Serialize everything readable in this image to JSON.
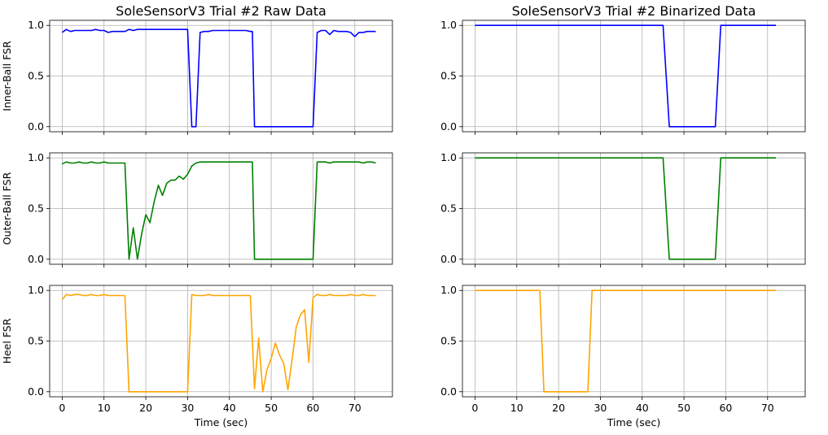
{
  "chart_data": [
    {
      "type": "line",
      "title": "SoleSensorV3 Trial #2 Raw Data",
      "ylabel": "Inner-Ball FSR",
      "xlabel": "",
      "xlim": [
        -3,
        79
      ],
      "ylim": [
        -0.05,
        1.05
      ],
      "xticks": [],
      "yticks": [
        "0.0",
        "0.5",
        "1.0"
      ],
      "grid": true,
      "series": [
        {
          "color": "#0000ff",
          "x": [
            0,
            1,
            2,
            3,
            4,
            5,
            6,
            7,
            8,
            9,
            10,
            11,
            12,
            13,
            14,
            15,
            16,
            17,
            18,
            19,
            20,
            21,
            22,
            23,
            24,
            25,
            26,
            27,
            28,
            29,
            30,
            31,
            32,
            33,
            34,
            35,
            36,
            37,
            38,
            39,
            40,
            41,
            42,
            43,
            44,
            45,
            45.5,
            46,
            60,
            61,
            62,
            63,
            64,
            65,
            66,
            67,
            68,
            69,
            70,
            71,
            72,
            73,
            74,
            75
          ],
          "y": [
            0.93,
            0.96,
            0.94,
            0.95,
            0.95,
            0.95,
            0.95,
            0.95,
            0.96,
            0.95,
            0.95,
            0.93,
            0.94,
            0.94,
            0.94,
            0.94,
            0.96,
            0.95,
            0.96,
            0.96,
            0.96,
            0.96,
            0.96,
            0.96,
            0.96,
            0.96,
            0.96,
            0.96,
            0.96,
            0.96,
            0.96,
            0.0,
            0.0,
            0.93,
            0.94,
            0.94,
            0.95,
            0.95,
            0.95,
            0.95,
            0.95,
            0.95,
            0.95,
            0.95,
            0.95,
            0.94,
            0.94,
            0.0,
            0.0,
            0.93,
            0.95,
            0.95,
            0.91,
            0.95,
            0.94,
            0.94,
            0.94,
            0.93,
            0.89,
            0.93,
            0.93,
            0.94,
            0.94,
            0.94
          ]
        }
      ]
    },
    {
      "type": "line",
      "title": "SoleSensorV3 Trial #2 Binarized Data",
      "ylabel": "",
      "xlabel": "",
      "xlim": [
        -3,
        79
      ],
      "ylim": [
        -0.05,
        1.05
      ],
      "xticks": [],
      "yticks": [
        "0.0",
        "0.5",
        "1.0"
      ],
      "grid": true,
      "series": [
        {
          "color": "#0000ff",
          "x": [
            0,
            45,
            46.5,
            57.5,
            58.8,
            72
          ],
          "y": [
            1,
            1,
            0,
            0,
            1,
            1
          ]
        }
      ]
    },
    {
      "type": "line",
      "title": "",
      "ylabel": "Outer-Ball FSR",
      "xlabel": "",
      "xlim": [
        -3,
        79
      ],
      "ylim": [
        -0.05,
        1.05
      ],
      "xticks": [],
      "yticks": [
        "0.0",
        "0.5",
        "1.0"
      ],
      "grid": true,
      "series": [
        {
          "color": "#008000",
          "x": [
            0,
            1,
            2,
            3,
            4,
            5,
            6,
            7,
            8,
            9,
            10,
            11,
            12,
            13,
            14,
            15,
            16,
            17,
            18,
            19,
            20,
            21,
            22,
            23,
            24,
            25,
            26,
            27,
            28,
            29,
            30,
            31,
            32,
            33,
            34,
            35,
            36,
            37,
            38,
            39,
            40,
            41,
            42,
            43,
            44,
            45,
            45.5,
            46,
            60,
            61,
            62,
            63,
            64,
            65,
            66,
            67,
            68,
            69,
            70,
            71,
            72,
            73,
            74,
            75
          ],
          "y": [
            0.94,
            0.96,
            0.95,
            0.95,
            0.96,
            0.95,
            0.95,
            0.96,
            0.95,
            0.95,
            0.96,
            0.95,
            0.95,
            0.95,
            0.95,
            0.95,
            0.0,
            0.31,
            0.0,
            0.25,
            0.44,
            0.36,
            0.57,
            0.73,
            0.63,
            0.75,
            0.78,
            0.78,
            0.82,
            0.79,
            0.84,
            0.92,
            0.95,
            0.96,
            0.96,
            0.96,
            0.96,
            0.96,
            0.96,
            0.96,
            0.96,
            0.96,
            0.96,
            0.96,
            0.96,
            0.96,
            0.96,
            0.0,
            0.0,
            0.96,
            0.96,
            0.96,
            0.95,
            0.96,
            0.96,
            0.96,
            0.96,
            0.96,
            0.96,
            0.96,
            0.95,
            0.96,
            0.96,
            0.95
          ]
        }
      ]
    },
    {
      "type": "line",
      "title": "",
      "ylabel": "",
      "xlabel": "",
      "xlim": [
        -3,
        79
      ],
      "ylim": [
        -0.05,
        1.05
      ],
      "xticks": [],
      "yticks": [
        "0.0",
        "0.5",
        "1.0"
      ],
      "grid": true,
      "series": [
        {
          "color": "#008000",
          "x": [
            0,
            45,
            46.5,
            57.5,
            58.8,
            72
          ],
          "y": [
            1,
            1,
            0,
            0,
            1,
            1
          ]
        }
      ]
    },
    {
      "type": "line",
      "title": "",
      "ylabel": "Heel FSR",
      "xlabel": "Time (sec)",
      "xlim": [
        -3,
        79
      ],
      "ylim": [
        -0.05,
        1.05
      ],
      "xticks": [
        "0",
        "10",
        "20",
        "30",
        "40",
        "50",
        "60",
        "70"
      ],
      "yticks": [
        "0.0",
        "0.5",
        "1.0"
      ],
      "grid": true,
      "series": [
        {
          "color": "#ffa500",
          "x": [
            0,
            1,
            2,
            3,
            4,
            5,
            6,
            7,
            8,
            9,
            10,
            11,
            12,
            13,
            14,
            15,
            16,
            17,
            18,
            19,
            20,
            21,
            22,
            23,
            24,
            25,
            26,
            27,
            28,
            29,
            30,
            31,
            32,
            33,
            34,
            35,
            36,
            37,
            38,
            39,
            40,
            41,
            42,
            43,
            44,
            45,
            46,
            47,
            48,
            49,
            50,
            51,
            52,
            53,
            54,
            55,
            56,
            57,
            58,
            59,
            60,
            61,
            62,
            63,
            64,
            65,
            66,
            67,
            68,
            69,
            70,
            71,
            72,
            73,
            74,
            75
          ],
          "y": [
            0.91,
            0.96,
            0.95,
            0.96,
            0.96,
            0.95,
            0.95,
            0.96,
            0.95,
            0.95,
            0.96,
            0.95,
            0.95,
            0.95,
            0.95,
            0.95,
            0.0,
            0.0,
            0.0,
            0.0,
            0.0,
            0.0,
            0.0,
            0.0,
            0.0,
            0.0,
            0.0,
            0.0,
            0.0,
            0.0,
            0.0,
            0.96,
            0.95,
            0.95,
            0.95,
            0.96,
            0.95,
            0.95,
            0.95,
            0.95,
            0.95,
            0.95,
            0.95,
            0.95,
            0.95,
            0.95,
            0.03,
            0.53,
            0.0,
            0.22,
            0.33,
            0.48,
            0.36,
            0.28,
            0.02,
            0.32,
            0.64,
            0.76,
            0.81,
            0.29,
            0.93,
            0.96,
            0.95,
            0.95,
            0.96,
            0.95,
            0.95,
            0.95,
            0.95,
            0.96,
            0.95,
            0.95,
            0.96,
            0.95,
            0.95,
            0.95
          ]
        }
      ]
    },
    {
      "type": "line",
      "title": "",
      "ylabel": "",
      "xlabel": "Time (sec)",
      "xlim": [
        -3,
        79
      ],
      "ylim": [
        -0.05,
        1.05
      ],
      "xticks": [
        "0",
        "10",
        "20",
        "30",
        "40",
        "50",
        "60",
        "70"
      ],
      "yticks": [
        "0.0",
        "0.5",
        "1.0"
      ],
      "grid": true,
      "series": [
        {
          "color": "#ffa500",
          "x": [
            0,
            15.5,
            16.5,
            27,
            28,
            72
          ],
          "y": [
            1,
            1,
            0,
            0,
            1,
            1
          ]
        }
      ]
    }
  ]
}
